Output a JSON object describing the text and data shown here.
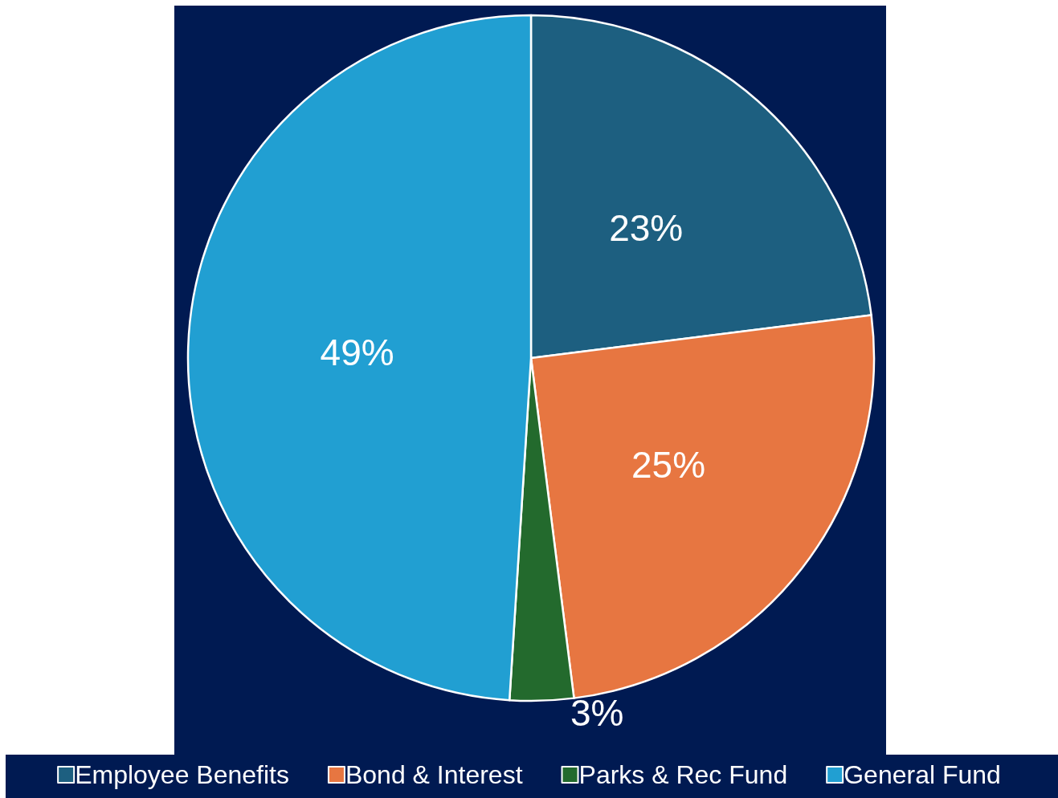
{
  "chart_data": {
    "type": "pie",
    "categories": [
      "Employee Benefits",
      "Bond & Interest",
      "Parks & Rec Fund",
      "General Fund"
    ],
    "values": [
      23,
      25,
      3,
      49
    ],
    "colors": [
      "#1d5f80",
      "#e77641",
      "#236a2d",
      "#219fd2"
    ],
    "value_labels": [
      "23%",
      "25%",
      "3%",
      "49%"
    ],
    "legend": "bottom"
  }
}
